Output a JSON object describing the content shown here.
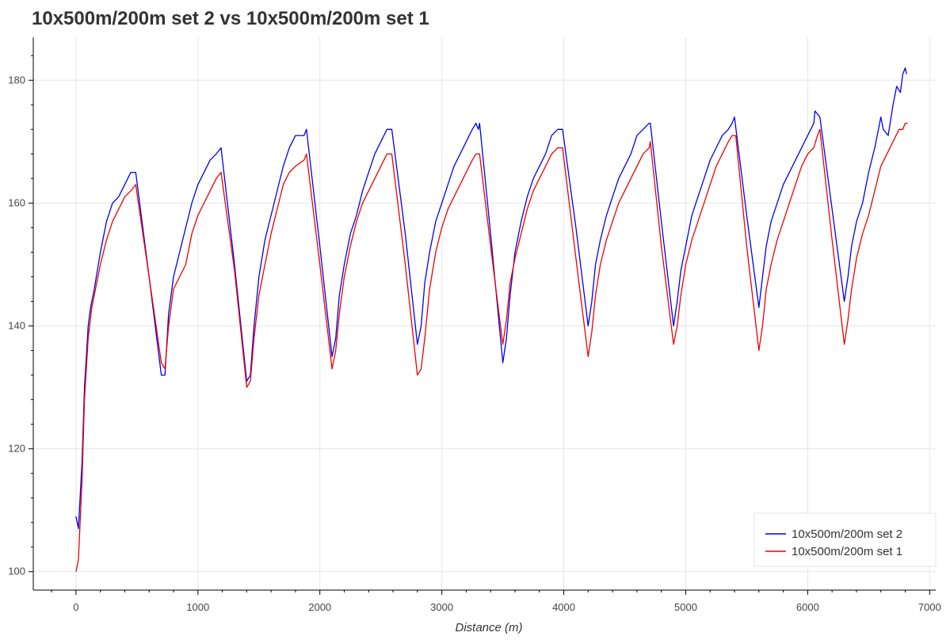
{
  "chart_data": {
    "type": "line",
    "title": "10x500m/200m set 2 vs 10x500m/200m set 1",
    "xlabel": "Distance (m)",
    "ylabel": "",
    "xlim": [
      -350,
      7050
    ],
    "ylim": [
      97,
      187
    ],
    "x_ticks": [
      0,
      1000,
      2000,
      3000,
      4000,
      5000,
      6000,
      7000
    ],
    "y_ticks": [
      100,
      120,
      140,
      160,
      180
    ],
    "grid": true,
    "legend_position": "bottom-right",
    "series": [
      {
        "name": "10x500m/200m set 2",
        "color": "#0000ee",
        "points": [
          [
            0,
            109
          ],
          [
            20,
            107
          ],
          [
            50,
            118
          ],
          [
            70,
            130
          ],
          [
            100,
            140
          ],
          [
            120,
            143
          ],
          [
            150,
            146
          ],
          [
            200,
            152
          ],
          [
            250,
            157
          ],
          [
            300,
            160
          ],
          [
            350,
            161
          ],
          [
            400,
            163
          ],
          [
            450,
            165
          ],
          [
            490,
            165
          ],
          [
            600,
            148
          ],
          [
            700,
            132
          ],
          [
            730,
            132
          ],
          [
            760,
            142
          ],
          [
            800,
            148
          ],
          [
            850,
            152
          ],
          [
            900,
            156
          ],
          [
            950,
            160
          ],
          [
            1000,
            163
          ],
          [
            1050,
            165
          ],
          [
            1100,
            167
          ],
          [
            1150,
            168
          ],
          [
            1190,
            169
          ],
          [
            1300,
            150
          ],
          [
            1400,
            131
          ],
          [
            1430,
            132
          ],
          [
            1460,
            140
          ],
          [
            1500,
            148
          ],
          [
            1550,
            154
          ],
          [
            1600,
            158
          ],
          [
            1650,
            162
          ],
          [
            1700,
            166
          ],
          [
            1750,
            169
          ],
          [
            1800,
            171
          ],
          [
            1870,
            171
          ],
          [
            1890,
            172
          ],
          [
            2000,
            153
          ],
          [
            2100,
            135
          ],
          [
            2130,
            138
          ],
          [
            2160,
            145
          ],
          [
            2200,
            150
          ],
          [
            2250,
            155
          ],
          [
            2300,
            158
          ],
          [
            2350,
            162
          ],
          [
            2400,
            165
          ],
          [
            2450,
            168
          ],
          [
            2500,
            170
          ],
          [
            2550,
            172
          ],
          [
            2590,
            172
          ],
          [
            2700,
            155
          ],
          [
            2800,
            137
          ],
          [
            2830,
            140
          ],
          [
            2860,
            147
          ],
          [
            2900,
            152
          ],
          [
            2950,
            157
          ],
          [
            3000,
            160
          ],
          [
            3050,
            163
          ],
          [
            3100,
            166
          ],
          [
            3150,
            168
          ],
          [
            3200,
            170
          ],
          [
            3250,
            172
          ],
          [
            3280,
            173
          ],
          [
            3300,
            172
          ],
          [
            3310,
            173
          ],
          [
            3400,
            155
          ],
          [
            3500,
            134
          ],
          [
            3530,
            138
          ],
          [
            3560,
            145
          ],
          [
            3600,
            152
          ],
          [
            3650,
            157
          ],
          [
            3700,
            161
          ],
          [
            3750,
            164
          ],
          [
            3800,
            166
          ],
          [
            3850,
            168
          ],
          [
            3900,
            171
          ],
          [
            3950,
            172
          ],
          [
            3990,
            172
          ],
          [
            4100,
            156
          ],
          [
            4200,
            140
          ],
          [
            4230,
            144
          ],
          [
            4260,
            150
          ],
          [
            4300,
            154
          ],
          [
            4350,
            158
          ],
          [
            4400,
            161
          ],
          [
            4450,
            164
          ],
          [
            4500,
            166
          ],
          [
            4550,
            168
          ],
          [
            4600,
            171
          ],
          [
            4650,
            172
          ],
          [
            4700,
            173
          ],
          [
            4710,
            173
          ],
          [
            4800,
            157
          ],
          [
            4900,
            140
          ],
          [
            4930,
            144
          ],
          [
            4960,
            149
          ],
          [
            5000,
            153
          ],
          [
            5050,
            158
          ],
          [
            5100,
            161
          ],
          [
            5150,
            164
          ],
          [
            5200,
            167
          ],
          [
            5250,
            169
          ],
          [
            5300,
            171
          ],
          [
            5350,
            172
          ],
          [
            5380,
            173
          ],
          [
            5400,
            174
          ],
          [
            5500,
            158
          ],
          [
            5600,
            143
          ],
          [
            5630,
            148
          ],
          [
            5660,
            153
          ],
          [
            5700,
            157
          ],
          [
            5750,
            160
          ],
          [
            5800,
            163
          ],
          [
            5850,
            165
          ],
          [
            5900,
            167
          ],
          [
            5950,
            169
          ],
          [
            6000,
            171
          ],
          [
            6050,
            173
          ],
          [
            6060,
            175
          ],
          [
            6100,
            174
          ],
          [
            6200,
            159
          ],
          [
            6300,
            144
          ],
          [
            6330,
            148
          ],
          [
            6360,
            153
          ],
          [
            6400,
            157
          ],
          [
            6450,
            160
          ],
          [
            6500,
            165
          ],
          [
            6550,
            169
          ],
          [
            6580,
            172
          ],
          [
            6600,
            174
          ],
          [
            6620,
            172
          ],
          [
            6660,
            171
          ],
          [
            6700,
            176
          ],
          [
            6730,
            179
          ],
          [
            6760,
            178
          ],
          [
            6780,
            181
          ],
          [
            6800,
            182
          ],
          [
            6810,
            181
          ]
        ]
      },
      {
        "name": "10x500m/200m set 1",
        "color": "#ee0000",
        "points": [
          [
            0,
            100
          ],
          [
            20,
            102
          ],
          [
            50,
            115
          ],
          [
            70,
            128
          ],
          [
            100,
            138
          ],
          [
            130,
            143
          ],
          [
            150,
            145
          ],
          [
            200,
            150
          ],
          [
            250,
            154
          ],
          [
            300,
            157
          ],
          [
            350,
            159
          ],
          [
            400,
            161
          ],
          [
            450,
            162
          ],
          [
            490,
            163
          ],
          [
            600,
            148
          ],
          [
            700,
            134
          ],
          [
            730,
            133
          ],
          [
            760,
            140
          ],
          [
            800,
            146
          ],
          [
            850,
            148
          ],
          [
            900,
            150
          ],
          [
            950,
            155
          ],
          [
            1000,
            158
          ],
          [
            1050,
            160
          ],
          [
            1100,
            162
          ],
          [
            1150,
            164
          ],
          [
            1190,
            165
          ],
          [
            1300,
            149
          ],
          [
            1400,
            130
          ],
          [
            1430,
            131
          ],
          [
            1460,
            138
          ],
          [
            1500,
            145
          ],
          [
            1550,
            150
          ],
          [
            1600,
            155
          ],
          [
            1650,
            159
          ],
          [
            1700,
            163
          ],
          [
            1750,
            165
          ],
          [
            1800,
            166
          ],
          [
            1870,
            167
          ],
          [
            1890,
            168
          ],
          [
            2000,
            150
          ],
          [
            2100,
            133
          ],
          [
            2130,
            136
          ],
          [
            2160,
            142
          ],
          [
            2200,
            148
          ],
          [
            2250,
            153
          ],
          [
            2300,
            157
          ],
          [
            2350,
            160
          ],
          [
            2400,
            162
          ],
          [
            2450,
            164
          ],
          [
            2500,
            166
          ],
          [
            2550,
            168
          ],
          [
            2590,
            168
          ],
          [
            2700,
            150
          ],
          [
            2800,
            132
          ],
          [
            2830,
            133
          ],
          [
            2860,
            138
          ],
          [
            2900,
            146
          ],
          [
            2950,
            152
          ],
          [
            3000,
            156
          ],
          [
            3050,
            159
          ],
          [
            3100,
            161
          ],
          [
            3150,
            163
          ],
          [
            3200,
            165
          ],
          [
            3250,
            167
          ],
          [
            3280,
            168
          ],
          [
            3310,
            168
          ],
          [
            3400,
            153
          ],
          [
            3500,
            137
          ],
          [
            3530,
            141
          ],
          [
            3560,
            147
          ],
          [
            3600,
            151
          ],
          [
            3650,
            155
          ],
          [
            3700,
            159
          ],
          [
            3750,
            162
          ],
          [
            3800,
            164
          ],
          [
            3850,
            166
          ],
          [
            3900,
            168
          ],
          [
            3950,
            169
          ],
          [
            3990,
            169
          ],
          [
            4100,
            151
          ],
          [
            4200,
            135
          ],
          [
            4230,
            139
          ],
          [
            4260,
            145
          ],
          [
            4300,
            150
          ],
          [
            4350,
            154
          ],
          [
            4400,
            157
          ],
          [
            4450,
            160
          ],
          [
            4500,
            162
          ],
          [
            4550,
            164
          ],
          [
            4600,
            166
          ],
          [
            4650,
            168
          ],
          [
            4700,
            169
          ],
          [
            4710,
            170
          ],
          [
            4800,
            153
          ],
          [
            4900,
            137
          ],
          [
            4930,
            140
          ],
          [
            4960,
            145
          ],
          [
            5000,
            150
          ],
          [
            5050,
            154
          ],
          [
            5100,
            157
          ],
          [
            5150,
            160
          ],
          [
            5200,
            163
          ],
          [
            5250,
            166
          ],
          [
            5300,
            168
          ],
          [
            5350,
            170
          ],
          [
            5380,
            171
          ],
          [
            5410,
            171
          ],
          [
            5500,
            153
          ],
          [
            5600,
            136
          ],
          [
            5630,
            140
          ],
          [
            5660,
            146
          ],
          [
            5700,
            150
          ],
          [
            5750,
            154
          ],
          [
            5800,
            157
          ],
          [
            5850,
            160
          ],
          [
            5900,
            163
          ],
          [
            5950,
            166
          ],
          [
            6000,
            168
          ],
          [
            6050,
            169
          ],
          [
            6080,
            171
          ],
          [
            6100,
            172
          ],
          [
            6200,
            154
          ],
          [
            6300,
            137
          ],
          [
            6330,
            141
          ],
          [
            6360,
            146
          ],
          [
            6400,
            151
          ],
          [
            6450,
            155
          ],
          [
            6500,
            158
          ],
          [
            6550,
            162
          ],
          [
            6600,
            166
          ],
          [
            6650,
            168
          ],
          [
            6700,
            170
          ],
          [
            6750,
            172
          ],
          [
            6780,
            172
          ],
          [
            6800,
            173
          ],
          [
            6820,
            173
          ]
        ]
      }
    ]
  }
}
